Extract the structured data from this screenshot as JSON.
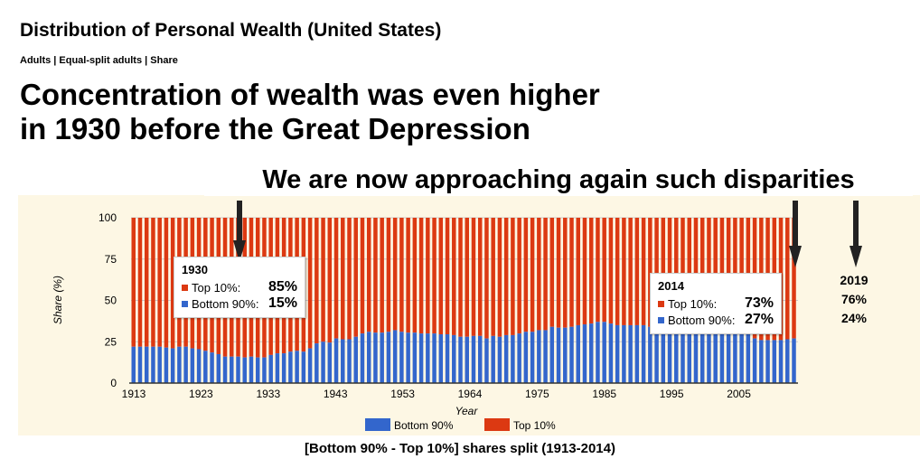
{
  "header": {
    "title": "Distribution of Personal Wealth (United States)",
    "subtitle": "Adults | Equal-split adults | Share",
    "headline_line1": "Concentration of wealth was even higher",
    "headline_line2": "in 1930 before the Great Depression",
    "approach": "We are now approaching again such disparities"
  },
  "caption": "[Bottom 90% - Top 10%] shares split (1913-2014)",
  "tooltip_1930": {
    "year": "1930",
    "top_label": "Top 10%:",
    "top_value": "85%",
    "bottom_label": "Bottom 90%:",
    "bottom_value": "15%"
  },
  "tooltip_2014": {
    "year": "2014",
    "top_label": "Top 10%:",
    "top_value": "73%",
    "bottom_label": "Bottom 90%:",
    "bottom_value": "27%"
  },
  "note_2019": {
    "year": "2019",
    "top": "76%",
    "bottom": "24%"
  },
  "colors": {
    "bottom": "#3366cc",
    "top": "#dc3912"
  },
  "chart_data": {
    "type": "bar",
    "stacked": true,
    "xlabel": "Year",
    "ylabel": "Share (%)",
    "ylim": [
      0,
      100
    ],
    "yticks": [
      "0",
      "25",
      "50",
      "75",
      "100"
    ],
    "xticks": [
      "1913",
      "1923",
      "1933",
      "1943",
      "1953",
      "1964",
      "1975",
      "1985",
      "1995",
      "2005"
    ],
    "x_start": 1913,
    "x_end": 2014,
    "legend": {
      "position": "bottom",
      "entries": [
        "Bottom 90%",
        "Top 10%"
      ]
    },
    "series": [
      {
        "name": "Bottom 90%",
        "values": [
          22,
          22,
          22,
          22,
          22,
          21.5,
          21,
          22,
          22,
          21,
          20.5,
          19.5,
          18.5,
          17.5,
          16,
          16,
          16,
          15.5,
          16,
          15.5,
          15.5,
          17,
          18,
          18,
          19,
          19.5,
          19,
          21,
          24,
          25,
          24.5,
          27,
          26.5,
          26.5,
          28,
          30,
          31,
          30.5,
          30.5,
          31,
          32,
          31,
          30.5,
          30.5,
          30,
          30,
          30,
          29.5,
          29.5,
          29,
          28,
          28,
          28.5,
          28.5,
          27,
          28.5,
          28,
          29,
          29,
          30,
          31,
          31,
          32,
          32,
          34,
          33.5,
          33.5,
          34,
          35,
          35.5,
          36,
          37,
          37,
          36,
          35,
          35,
          35,
          35,
          35,
          34,
          33,
          33,
          33,
          33,
          33,
          33,
          33,
          33,
          33,
          33,
          33,
          33,
          32,
          32,
          30,
          27,
          26,
          26,
          26,
          26,
          26.5,
          27
        ]
      },
      {
        "name": "Top 10%",
        "derived": "100 - Bottom 90%"
      }
    ]
  }
}
